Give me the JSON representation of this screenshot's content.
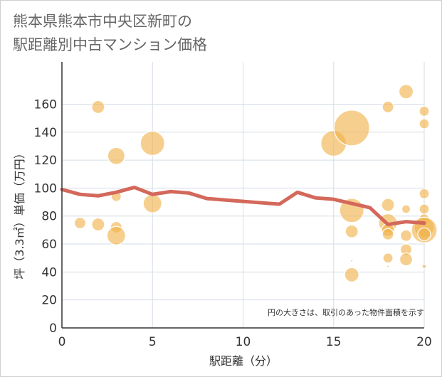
{
  "chart_data": {
    "type": "scatter",
    "title_lines": [
      "熊本県熊本市中央区新町の",
      "駅距離別中古マンション価格"
    ],
    "xlabel": "駅距離（分）",
    "ylabel": "坪（3.3㎡）単価（万円）",
    "xlim": [
      0,
      20
    ],
    "ylim": [
      0,
      175
    ],
    "x_ticks": [
      "0",
      "5",
      "10",
      "15",
      "20"
    ],
    "y_ticks": [
      "0",
      "20",
      "40",
      "60",
      "80",
      "100",
      "120",
      "140",
      "160"
    ],
    "grid": true,
    "note": "円の大きさは、取引のあった物件面積を示す",
    "colors": {
      "bubble": "#f1b24a",
      "line": "#d3685b",
      "grid": "#d5dde5",
      "axis": "#333333"
    },
    "points": [
      {
        "x": 1,
        "y": 75,
        "s": 8
      },
      {
        "x": 2,
        "y": 158,
        "s": 9
      },
      {
        "x": 2,
        "y": 74,
        "s": 9
      },
      {
        "x": 3,
        "y": 123,
        "s": 12
      },
      {
        "x": 3,
        "y": 94,
        "s": 7
      },
      {
        "x": 3,
        "y": 72,
        "s": 8
      },
      {
        "x": 3,
        "y": 66,
        "s": 13
      },
      {
        "x": 5,
        "y": 132,
        "s": 17
      },
      {
        "x": 5,
        "y": 89,
        "s": 13
      },
      {
        "x": 15,
        "y": 132,
        "s": 18
      },
      {
        "x": 16,
        "y": 143,
        "s": 25
      },
      {
        "x": 16,
        "y": 84,
        "s": 17
      },
      {
        "x": 16,
        "y": 69,
        "s": 9
      },
      {
        "x": 16,
        "y": 48,
        "s": 1
      },
      {
        "x": 16,
        "y": 38,
        "s": 10
      },
      {
        "x": 18,
        "y": 158,
        "s": 8
      },
      {
        "x": 18,
        "y": 88,
        "s": 9
      },
      {
        "x": 18,
        "y": 75,
        "s": 13
      },
      {
        "x": 18,
        "y": 70,
        "s": 9
      },
      {
        "x": 18,
        "y": 67,
        "s": 8
      },
      {
        "x": 18,
        "y": 50,
        "s": 7
      },
      {
        "x": 18,
        "y": 44,
        "s": 1
      },
      {
        "x": 19,
        "y": 169,
        "s": 10
      },
      {
        "x": 19,
        "y": 85,
        "s": 6
      },
      {
        "x": 19,
        "y": 66,
        "s": 8
      },
      {
        "x": 19,
        "y": 56,
        "s": 8
      },
      {
        "x": 19,
        "y": 49,
        "s": 9
      },
      {
        "x": 20,
        "y": 155,
        "s": 7
      },
      {
        "x": 20,
        "y": 146,
        "s": 7
      },
      {
        "x": 20,
        "y": 96,
        "s": 7
      },
      {
        "x": 20,
        "y": 85,
        "s": 7
      },
      {
        "x": 20,
        "y": 78,
        "s": 7
      },
      {
        "x": 20,
        "y": 72,
        "s": 14
      },
      {
        "x": 20,
        "y": 70,
        "s": 18
      },
      {
        "x": 20,
        "y": 67,
        "s": 9
      },
      {
        "x": 20,
        "y": 44,
        "s": 3
      }
    ],
    "line": {
      "x": [
        0,
        1,
        2,
        3,
        4,
        5,
        6,
        7,
        8,
        9,
        10,
        11,
        12,
        13,
        14,
        15,
        16,
        17,
        18,
        19,
        20
      ],
      "y": [
        99,
        95.5,
        94.5,
        97,
        100.5,
        95.5,
        97.5,
        96.5,
        92.5,
        91.5,
        90.5,
        89.5,
        88.5,
        97,
        93,
        92,
        89,
        86,
        74,
        76,
        75
      ]
    }
  }
}
